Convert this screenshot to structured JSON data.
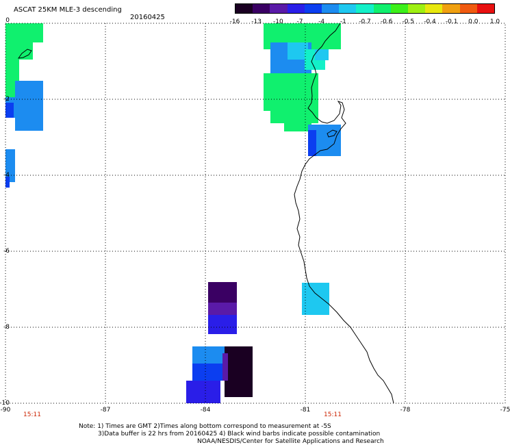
{
  "header": {
    "title": "ASCAT 25KM MLE-3 descending",
    "date": "20160425"
  },
  "colorbar": {
    "labels": [
      "-16",
      "-13",
      "-10",
      "-7",
      "-4",
      "-1",
      "-0.7",
      "-0.6",
      "-0.5",
      "-0.4",
      "-0.1",
      "0.0",
      "1.0"
    ],
    "colors": [
      "#1a0022",
      "#3a0063",
      "#5a1aa8",
      "#2a1ee8",
      "#0b3ef0",
      "#1c8cf0",
      "#1ec8f0",
      "#13f0c8",
      "#10f06e",
      "#3cf01a",
      "#9ef012",
      "#e8e80e",
      "#f0a010",
      "#f05a10",
      "#e81010"
    ]
  },
  "map": {
    "x_axis": {
      "unit": "longitude",
      "ticks": [
        "-90",
        "-87",
        "-84",
        "-81",
        "-78",
        "-75"
      ]
    },
    "y_axis": {
      "unit": "latitude",
      "ticks": [
        "0",
        "-2",
        "-4",
        "-6",
        "-8",
        "-10"
      ]
    },
    "grid": "dotted",
    "coastline_color": "#000000"
  },
  "times": [
    "15:11",
    "15:11"
  ],
  "notes": [
    "Note: 1) Times are GMT 2)Times along bottom correspond to measurement at -5S",
    "3)Data buffer is 22 hrs from 20160425 4) Black wind barbs indicate possible contamination",
    "NOAA/NESDIS/Center for Satellite Applications and Research"
  ]
}
